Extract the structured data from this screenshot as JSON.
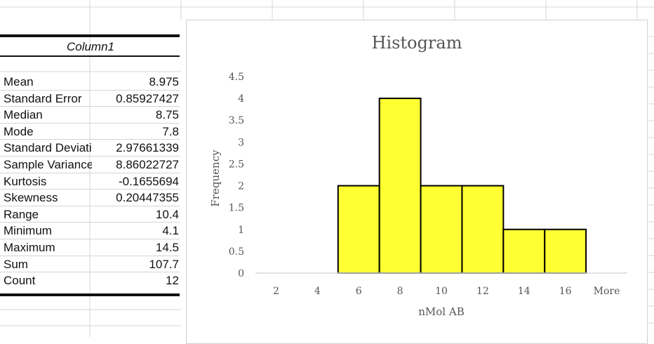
{
  "stats": {
    "column_header": "Column1",
    "rows": [
      {
        "label": "Mean",
        "value": "8.975"
      },
      {
        "label": "Standard Error",
        "value": "0.85927427"
      },
      {
        "label": "Median",
        "value": "8.75"
      },
      {
        "label": "Mode",
        "value": "7.8"
      },
      {
        "label": "Standard Deviation",
        "value": "2.97661339"
      },
      {
        "label": "Sample Variance",
        "value": "8.86022727"
      },
      {
        "label": "Kurtosis",
        "value": "-0.1655694"
      },
      {
        "label": "Skewness",
        "value": "0.20447355"
      },
      {
        "label": "Range",
        "value": "10.4"
      },
      {
        "label": "Minimum",
        "value": "4.1"
      },
      {
        "label": "Maximum",
        "value": "14.5"
      },
      {
        "label": "Sum",
        "value": "107.7"
      },
      {
        "label": "Count",
        "value": "12"
      }
    ]
  },
  "chart_data": {
    "type": "bar",
    "title": "Histogram",
    "xlabel": "nMol AB",
    "ylabel": "Frequency",
    "categories": [
      "2",
      "4",
      "6",
      "8",
      "10",
      "12",
      "14",
      "16",
      "More"
    ],
    "values": [
      0,
      0,
      2,
      4,
      2,
      2,
      1,
      1,
      0
    ],
    "y_ticks": [
      "0",
      "0.5",
      "1",
      "1.5",
      "2",
      "2.5",
      "3",
      "3.5",
      "4",
      "4.5"
    ],
    "ylim": [
      0,
      4.5
    ],
    "bar_color": "#ffff33",
    "bar_edge_color": "#000000",
    "grid": false,
    "legend": "none"
  }
}
